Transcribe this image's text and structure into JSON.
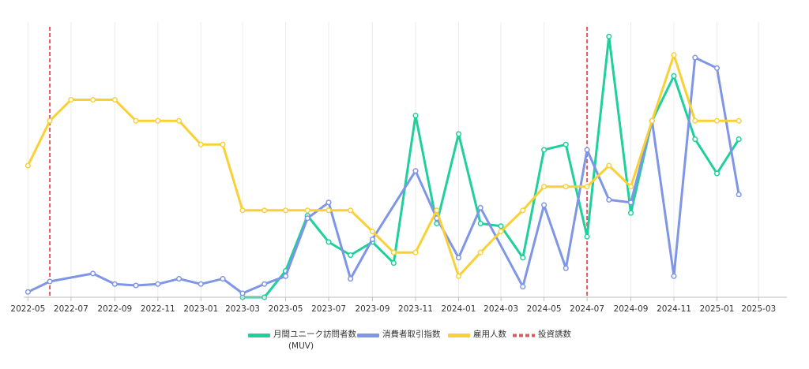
{
  "chart_data": {
    "type": "line",
    "x_axis": {
      "type": "date",
      "range": [
        "2022-04-25",
        "2025-04-10"
      ],
      "ticks": [
        "2022-05",
        "2022-07",
        "2022-09",
        "2022-11",
        "2023-01",
        "2023-03",
        "2023-05",
        "2023-07",
        "2023-09",
        "2023-11",
        "2024-01",
        "2024-03",
        "2024-05",
        "2024-07",
        "2024-09",
        "2024-11",
        "2025-01",
        "2025-03"
      ]
    },
    "y_axis": {
      "visible": false,
      "ylim": [
        0,
        100
      ]
    },
    "grid": {
      "vertical": true,
      "horizontal": false
    },
    "legend": {
      "position": "bottom"
    },
    "series": [
      {
        "name": "月間ユニーク訪問者数",
        "name_line2": "(MUV)",
        "color": "#1fcf9c",
        "points": [
          [
            "2023-03-01",
            0
          ],
          [
            "2023-04-01",
            0
          ],
          [
            "2023-05-01",
            10
          ],
          [
            "2023-06-01",
            31
          ],
          [
            "2023-07-01",
            21
          ],
          [
            "2023-08-01",
            16
          ],
          [
            "2023-09-01",
            21
          ],
          [
            "2023-10-01",
            13
          ],
          [
            "2023-11-01",
            69
          ],
          [
            "2023-12-01",
            28
          ],
          [
            "2024-01-01",
            62
          ],
          [
            "2024-02-01",
            28
          ],
          [
            "2024-03-01",
            27
          ],
          [
            "2024-04-01",
            15
          ],
          [
            "2024-05-01",
            56
          ],
          [
            "2024-06-01",
            58
          ],
          [
            "2024-07-01",
            23
          ],
          [
            "2024-08-01",
            99
          ],
          [
            "2024-09-01",
            32
          ],
          [
            "2024-10-01",
            67
          ],
          [
            "2024-11-01",
            84
          ],
          [
            "2024-12-01",
            60
          ],
          [
            "2025-01-01",
            47
          ],
          [
            "2025-02-01",
            60
          ]
        ]
      },
      {
        "name": "消費者取引指数",
        "color": "#7f95e6",
        "points": [
          [
            "2022-05-01",
            2
          ],
          [
            "2022-06-01",
            6
          ],
          [
            "2022-08-01",
            9
          ],
          [
            "2022-09-01",
            5
          ],
          [
            "2022-10-01",
            4.5
          ],
          [
            "2022-11-01",
            5
          ],
          [
            "2022-12-01",
            7
          ],
          [
            "2023-01-01",
            5
          ],
          [
            "2023-02-01",
            7
          ],
          [
            "2023-03-01",
            1.5
          ],
          [
            "2023-04-01",
            5
          ],
          [
            "2023-05-01",
            8
          ],
          [
            "2023-06-01",
            30
          ],
          [
            "2023-07-01",
            36
          ],
          [
            "2023-08-01",
            7
          ],
          [
            "2023-09-01",
            22
          ],
          [
            "2023-11-01",
            48
          ],
          [
            "2023-12-01",
            30
          ],
          [
            "2024-01-01",
            15
          ],
          [
            "2024-02-01",
            34
          ],
          [
            "2024-04-01",
            4
          ],
          [
            "2024-05-01",
            35
          ],
          [
            "2024-06-01",
            11
          ],
          [
            "2024-07-01",
            56
          ],
          [
            "2024-08-01",
            37
          ],
          [
            "2024-09-01",
            36
          ],
          [
            "2024-10-01",
            67
          ],
          [
            "2024-11-01",
            8
          ],
          [
            "2024-12-01",
            91
          ],
          [
            "2025-01-01",
            87
          ],
          [
            "2025-02-01",
            39
          ]
        ]
      },
      {
        "name": "雇用人数",
        "color": "#f9d136",
        "points": [
          [
            "2022-05-01",
            50
          ],
          [
            "2022-06-01",
            67
          ],
          [
            "2022-07-01",
            75
          ],
          [
            "2022-08-01",
            75
          ],
          [
            "2022-09-01",
            75
          ],
          [
            "2022-10-01",
            67
          ],
          [
            "2022-11-01",
            67
          ],
          [
            "2022-12-01",
            67
          ],
          [
            "2023-01-01",
            58
          ],
          [
            "2023-02-01",
            58
          ],
          [
            "2023-03-01",
            33
          ],
          [
            "2023-04-01",
            33
          ],
          [
            "2023-05-01",
            33
          ],
          [
            "2023-06-01",
            33
          ],
          [
            "2023-07-01",
            33
          ],
          [
            "2023-08-01",
            33
          ],
          [
            "2023-09-01",
            25
          ],
          [
            "2023-10-01",
            17
          ],
          [
            "2023-11-01",
            17
          ],
          [
            "2023-12-01",
            33
          ],
          [
            "2024-01-01",
            8
          ],
          [
            "2024-02-01",
            17
          ],
          [
            "2024-03-01",
            25
          ],
          [
            "2024-04-01",
            33
          ],
          [
            "2024-05-01",
            42
          ],
          [
            "2024-06-01",
            42
          ],
          [
            "2024-07-01",
            42
          ],
          [
            "2024-08-01",
            50
          ],
          [
            "2024-09-01",
            42
          ],
          [
            "2024-10-01",
            67
          ],
          [
            "2024-11-01",
            92
          ],
          [
            "2024-12-01",
            67
          ],
          [
            "2025-01-01",
            67
          ],
          [
            "2025-02-01",
            67
          ]
        ]
      }
    ],
    "event_lines": {
      "name": "投資誘数",
      "color": "#e05a5a",
      "dates": [
        "2022-06-01",
        "2024-07-01"
      ]
    }
  }
}
